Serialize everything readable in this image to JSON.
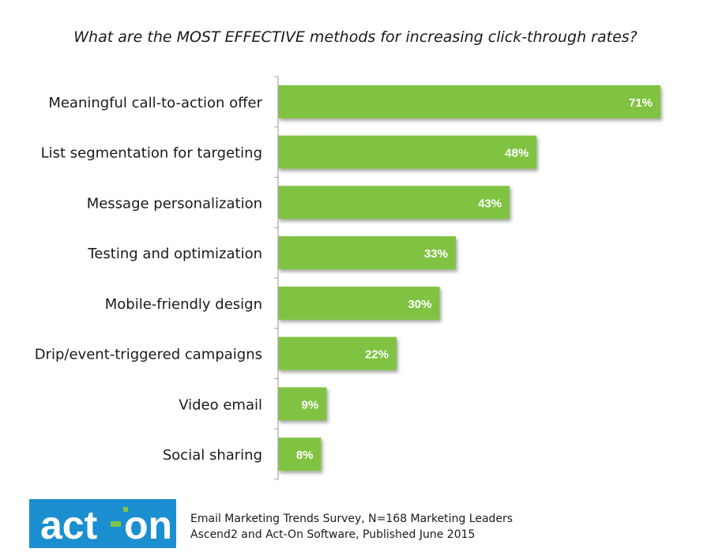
{
  "chart_data": {
    "type": "bar",
    "orientation": "horizontal",
    "title": "What are the MOST EFFECTIVE methods for increasing click-through rates?",
    "categories": [
      "Meaningful call-to-action offer",
      "List segmentation for targeting",
      "Message personalization",
      "Testing and optimization",
      "Mobile-friendly design",
      "Drip/event-triggered campaigns",
      "Video email",
      "Social sharing"
    ],
    "values": [
      71,
      48,
      43,
      33,
      30,
      22,
      9,
      8
    ],
    "value_labels": [
      "71%",
      "48%",
      "43%",
      "33%",
      "30%",
      "22%",
      "9%",
      "8%"
    ],
    "unit": "%",
    "xlim": [
      0,
      71
    ],
    "grid": false,
    "legend": "none",
    "bar_color": "#80c343"
  },
  "logo": {
    "text_left": "act",
    "text_right": "on",
    "bg_color": "#1b8fd0",
    "accent_color": "#80c343"
  },
  "footer": {
    "line1": "Email Marketing Trends Survey, N=168 Marketing Leaders",
    "line2": "Ascend2 and Act-On Software, Published June 2015"
  }
}
